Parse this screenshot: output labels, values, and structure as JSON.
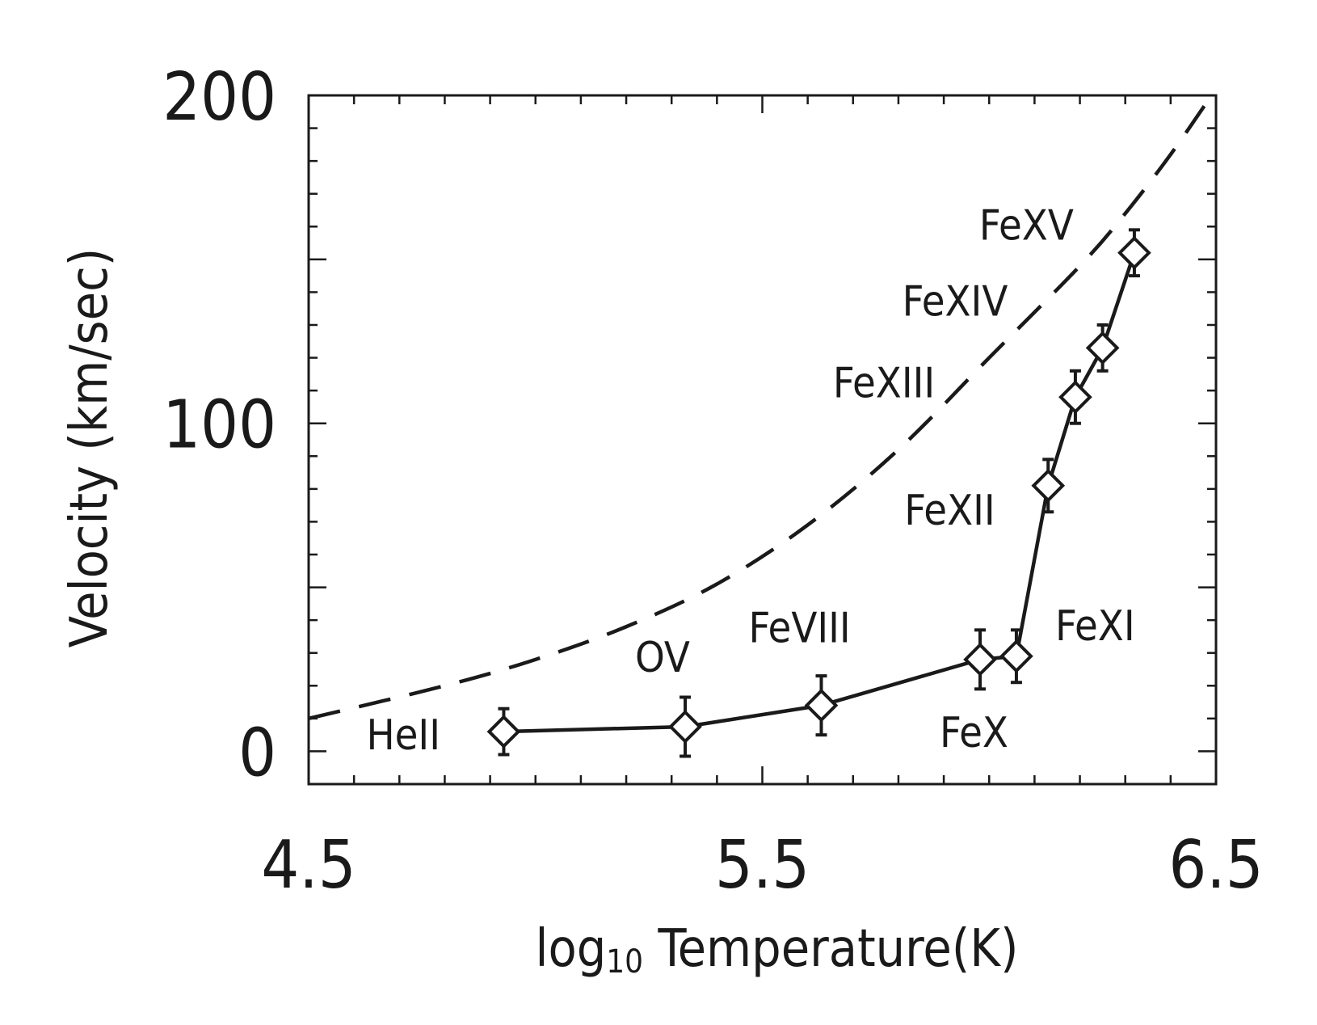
{
  "chart_data": {
    "type": "line",
    "title": "",
    "xlabel_main": "log",
    "xlabel_sub": "10",
    "xlabel_rest": " Temperature(K)",
    "ylabel": "Velocity (km/sec)",
    "xlim": [
      4.5,
      6.5
    ],
    "ylim": [
      -10,
      200
    ],
    "x_ticks": [
      4.5,
      5.5,
      6.5
    ],
    "x_tick_labels": [
      "4.5",
      "5.5",
      "6.5"
    ],
    "y_ticks": [
      0,
      100,
      200
    ],
    "y_tick_labels": [
      "0",
      "100",
      "200"
    ],
    "grid": false,
    "series": [
      {
        "style": "solid-diamond-errorbars",
        "points": [
          {
            "ion": "HeII",
            "x": 4.93,
            "y": 6,
            "err": 7
          },
          {
            "ion": "OV",
            "x": 5.33,
            "y": 7.5,
            "err": 9
          },
          {
            "ion": "FeVIII",
            "x": 5.63,
            "y": 14,
            "err": 9
          },
          {
            "ion": "FeX",
            "x": 5.98,
            "y": 28,
            "err": 9
          },
          {
            "ion": "FeXI",
            "x": 6.06,
            "y": 29,
            "err": 8
          },
          {
            "ion": "FeXII",
            "x": 6.13,
            "y": 81,
            "err": 8
          },
          {
            "ion": "FeXIII",
            "x": 6.19,
            "y": 108,
            "err": 8
          },
          {
            "ion": "FeXIV",
            "x": 6.25,
            "y": 123,
            "err": 7
          },
          {
            "ion": "FeXV",
            "x": 6.32,
            "y": 152,
            "err": 7
          }
        ]
      },
      {
        "style": "dashed",
        "x": [
          4.5,
          4.8,
          5.0,
          5.2,
          5.4,
          5.6,
          5.8,
          6.0,
          6.2,
          6.3,
          6.4,
          6.5
        ],
        "y": [
          10,
          20,
          28,
          38,
          51,
          69,
          92,
          120,
          148,
          164,
          182,
          202
        ]
      }
    ]
  }
}
